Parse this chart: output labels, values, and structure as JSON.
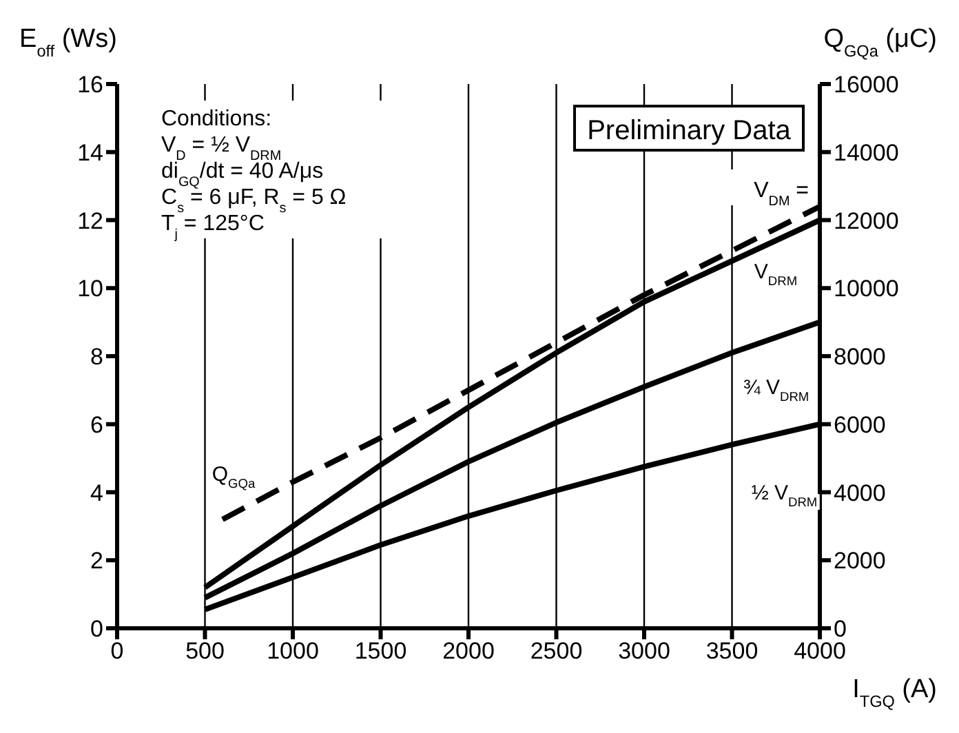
{
  "chart_data": {
    "type": "line",
    "xlabel": "I$_{TGQ}$ (A)",
    "ylabel": "E$_{off}$ (Ws)",
    "y2label": "Q$_{GQa}$ (μC)",
    "xlim": [
      0,
      4000
    ],
    "xticks": [
      0,
      500,
      1000,
      1500,
      2000,
      2500,
      3000,
      3500,
      4000
    ],
    "ylim": [
      0,
      16
    ],
    "yticks": [
      0,
      2,
      4,
      6,
      8,
      10,
      12,
      14,
      16
    ],
    "y2lim": [
      0,
      16000
    ],
    "y2ticks": [
      0,
      2000,
      4000,
      6000,
      8000,
      10000,
      12000,
      14000,
      16000
    ],
    "grid": true,
    "marker": "none",
    "annotations": [
      "Conditions:",
      "V$_{D}$ = ½ V$_{DRM}$",
      "di$_{GQ}$/dt = 40 A/μs",
      "C$_{s}$ = 6 μF, R$_{s}$ = 5 Ω",
      "T$_{j}$ = 125°C",
      "Preliminary Data",
      "V$_{DM}$ ="
    ],
    "series": [
      {
        "name": "V$_{DRM}$",
        "color": "#000000",
        "line_style": "solid",
        "x": [
          500,
          1000,
          1500,
          2000,
          2500,
          3000,
          3500,
          4000
        ],
        "values": [
          1.2,
          3.0,
          4.8,
          6.5,
          8.1,
          9.6,
          10.8,
          12.0
        ]
      },
      {
        "name": "¾ V$_{DRM}$",
        "color": "#000000",
        "line_style": "solid",
        "x": [
          500,
          1000,
          1500,
          2000,
          2500,
          3000,
          3500,
          4000
        ],
        "values": [
          0.9,
          2.2,
          3.6,
          4.9,
          6.05,
          7.1,
          8.1,
          9.0
        ]
      },
      {
        "name": "½ V$_{DRM}$",
        "color": "#000000",
        "line_style": "solid",
        "x": [
          500,
          1000,
          1500,
          2000,
          2500,
          3000,
          3500,
          4000
        ],
        "values": [
          0.55,
          1.5,
          2.45,
          3.3,
          4.05,
          4.75,
          5.4,
          6.0
        ]
      },
      {
        "name": "Q$_{GQa}$",
        "color": "#000000",
        "line_style": "dashed",
        "axis": "y2",
        "x": [
          600,
          1000,
          1500,
          2000,
          2500,
          3000,
          3500,
          4000
        ],
        "values": [
          3200,
          4300,
          5600,
          7000,
          8400,
          9800,
          11100,
          12400
        ]
      }
    ]
  }
}
